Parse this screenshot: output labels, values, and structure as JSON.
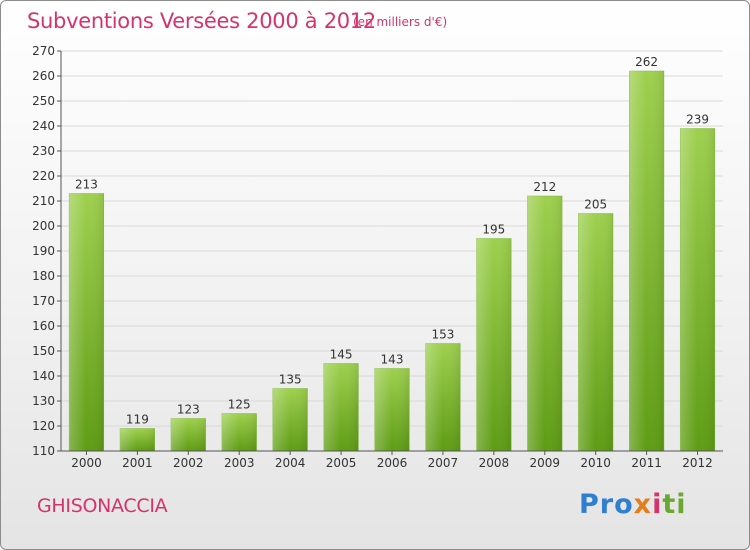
{
  "header": {
    "title": "Subventions Versées 2000 à 2012",
    "subtitle": "(en milliers d'€)"
  },
  "footer": {
    "place": "GHISONACCIA",
    "logo_parts": [
      "Pro",
      "x",
      "i",
      "ti"
    ]
  },
  "colors": {
    "accent": "#d6336c",
    "bar_top": "#9ed04e",
    "bar_bottom": "#5e9c14",
    "grid": "#d9d9d9"
  },
  "chart_data": {
    "type": "bar",
    "title": "Subventions Versées 2000 à 2012",
    "subtitle": "(en milliers d'€)",
    "categories": [
      "2000",
      "2001",
      "2002",
      "2003",
      "2004",
      "2005",
      "2006",
      "2007",
      "2008",
      "2009",
      "2010",
      "2011",
      "2012"
    ],
    "values": [
      213,
      119,
      123,
      125,
      135,
      145,
      143,
      153,
      195,
      212,
      205,
      262,
      239
    ],
    "ylim": [
      110,
      270
    ],
    "ytick_step": 10,
    "grid": true,
    "data_labels": true
  }
}
